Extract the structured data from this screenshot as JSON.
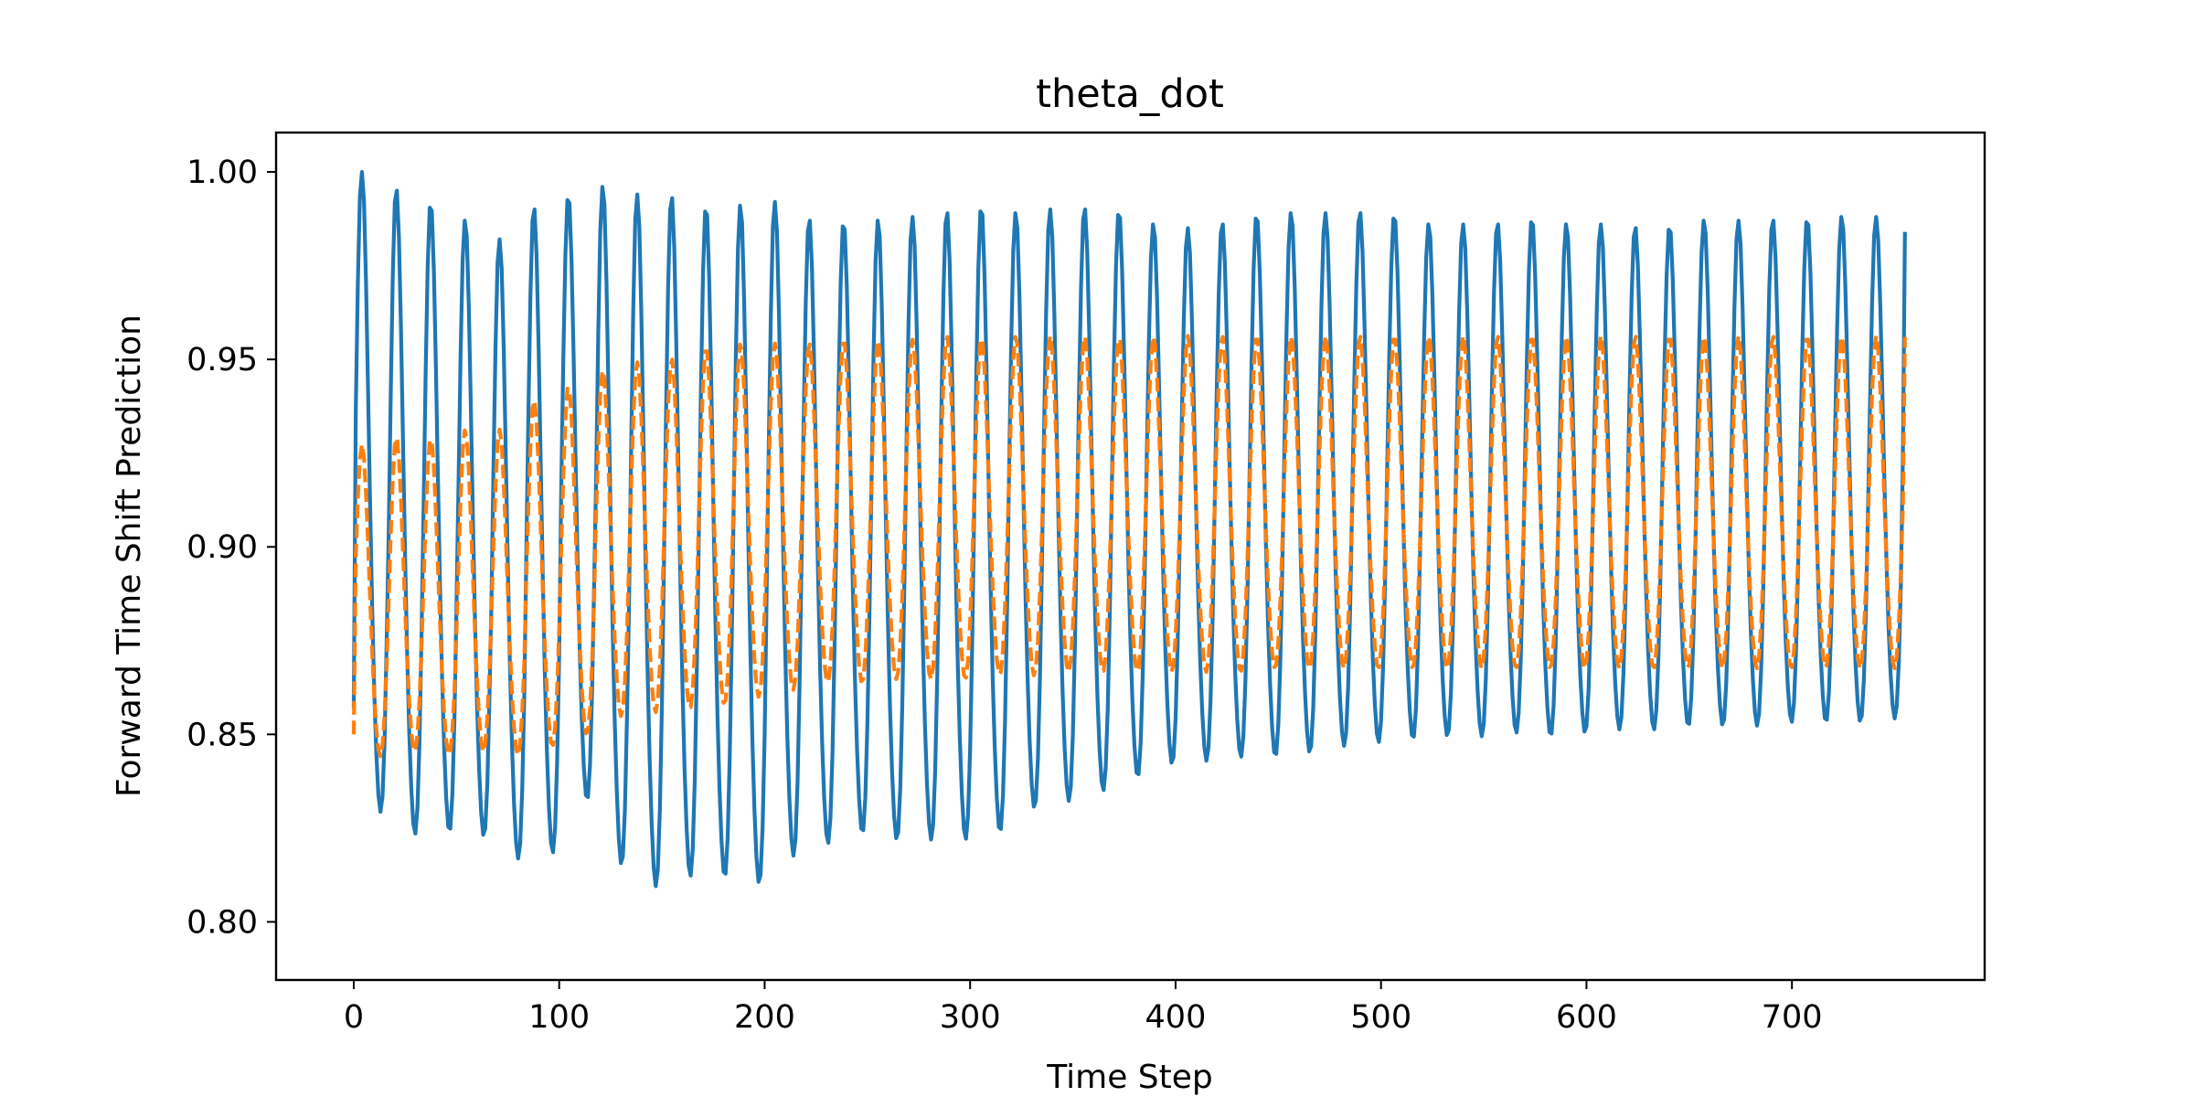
{
  "chart_data": {
    "type": "line",
    "title": "theta_dot",
    "xlabel": "Time Step",
    "ylabel": "Forward Time Shift Prediction",
    "xlim": [
      -37.8,
      793.8
    ],
    "ylim": [
      0.7845,
      1.0105
    ],
    "xticks": [
      0,
      100,
      200,
      300,
      400,
      500,
      600,
      700
    ],
    "xtick_labels": [
      "0",
      "100",
      "200",
      "300",
      "400",
      "500",
      "600",
      "700"
    ],
    "yticks": [
      0.8,
      0.85,
      0.9,
      0.95,
      1.0
    ],
    "ytick_labels": [
      "0.80",
      "0.85",
      "0.90",
      "0.95",
      "1.00"
    ],
    "grid": false,
    "legend": "none",
    "n_points": 756,
    "period": 16.75,
    "series": [
      {
        "style": "solid",
        "color": "#1f77b4",
        "peak_values": [
          1.0,
          0.995,
          0.991,
          0.987,
          0.982,
          0.99,
          0.993,
          0.996,
          0.994,
          0.993,
          0.99,
          0.991,
          0.992,
          0.987,
          0.986,
          0.987,
          0.988,
          0.989,
          0.99,
          0.989,
          0.99,
          0.99,
          0.989,
          0.986,
          0.985,
          0.986,
          0.988,
          0.989,
          0.989,
          0.989,
          0.988,
          0.986,
          0.986,
          0.986,
          0.987,
          0.986,
          0.986,
          0.985,
          0.985,
          0.987,
          0.987,
          0.987,
          0.987,
          0.988,
          0.988,
          0.987
        ],
        "trough_values": [
          0.815,
          0.809,
          0.81,
          0.809,
          0.803,
          0.804,
          0.819,
          0.8,
          0.794,
          0.797,
          0.797,
          0.795,
          0.803,
          0.807,
          0.81,
          0.808,
          0.808,
          0.808,
          0.81,
          0.817,
          0.819,
          0.822,
          0.826,
          0.83,
          0.831,
          0.832,
          0.832,
          0.833,
          0.835,
          0.836,
          0.837,
          0.838,
          0.838,
          0.839,
          0.838,
          0.839,
          0.84,
          0.84,
          0.841,
          0.841,
          0.841,
          0.842,
          0.842,
          0.842,
          0.843,
          0.86
        ]
      },
      {
        "style": "dashed",
        "color": "#ff7f0e",
        "peak_values": [
          0.928,
          0.93,
          0.93,
          0.932,
          0.932,
          0.94,
          0.944,
          0.948,
          0.95,
          0.951,
          0.954,
          0.955,
          0.955,
          0.955,
          0.956,
          0.956,
          0.956,
          0.957,
          0.957,
          0.957,
          0.957,
          0.957,
          0.957,
          0.957,
          0.957,
          0.957,
          0.957,
          0.957,
          0.957,
          0.957,
          0.957,
          0.957,
          0.957,
          0.957,
          0.957,
          0.957,
          0.957,
          0.957,
          0.957,
          0.957,
          0.957,
          0.957,
          0.957,
          0.957,
          0.957,
          0.957
        ],
        "trough_values": [
          0.838,
          0.839,
          0.838,
          0.839,
          0.838,
          0.84,
          0.843,
          0.848,
          0.849,
          0.85,
          0.851,
          0.853,
          0.855,
          0.857,
          0.857,
          0.858,
          0.858,
          0.858,
          0.859,
          0.859,
          0.86,
          0.86,
          0.86,
          0.86,
          0.86,
          0.86,
          0.861,
          0.861,
          0.861,
          0.861,
          0.861,
          0.861,
          0.861,
          0.861,
          0.861,
          0.861,
          0.861,
          0.861,
          0.861,
          0.861,
          0.861,
          0.861,
          0.861,
          0.861,
          0.861,
          0.861
        ]
      }
    ]
  }
}
